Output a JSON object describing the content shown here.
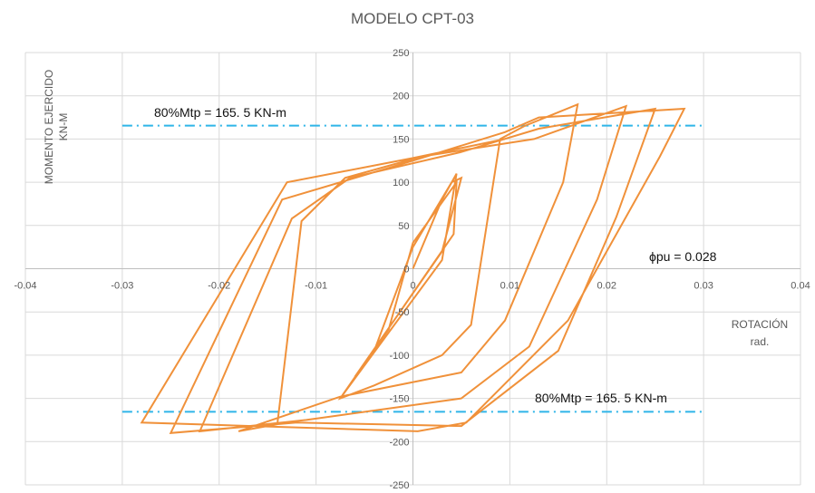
{
  "chart_data": {
    "type": "line",
    "title": "MODELO CPT-03",
    "xlabel": [
      "ROTACIÓN",
      "rad."
    ],
    "ylabel": [
      "MOMENTO EJERCIDO",
      "KN-M"
    ],
    "xlim": [
      -0.04,
      0.04
    ],
    "ylim": [
      -250,
      250
    ],
    "x_ticks": [
      -0.04,
      -0.03,
      -0.02,
      -0.01,
      0,
      0.01,
      0.02,
      0.03,
      0.04
    ],
    "x_tick_labels": [
      "-0.04",
      "-0.03",
      "-0.02",
      "-0.01",
      "0",
      "0.01",
      "0.02",
      "0.03",
      "0.04"
    ],
    "y_ticks": [
      -250,
      -200,
      -150,
      -100,
      -50,
      0,
      50,
      100,
      150,
      200,
      250
    ],
    "y_tick_labels": [
      "-250",
      "-200",
      "-150",
      "-100",
      "-50",
      "0",
      "50",
      "100",
      "150",
      "200",
      "250"
    ],
    "grid": true,
    "colors": {
      "hysteresis": "#F0913A",
      "reference": "#2FB5E8",
      "grid": "#D9D9D9",
      "text": "#595959"
    },
    "reference_lines": [
      {
        "y": 165.5,
        "x_range": [
          -0.03,
          0.03
        ],
        "label": "80%Mtp = 165. 5 KN-m",
        "style": "dash-dot"
      },
      {
        "y": -165.5,
        "x_range": [
          -0.03,
          0.03
        ],
        "label": "80%Mtp = 165. 5 KN-m",
        "style": "dash-dot"
      }
    ],
    "annotations": [
      {
        "text": "ϕpu = 0.028"
      }
    ],
    "series": [
      {
        "values": [
          [
            0,
            0
          ],
          [
            0.003,
            80
          ],
          [
            0.0045,
            110
          ],
          [
            0.003,
            10
          ],
          [
            -0.0075,
            -150
          ],
          [
            -0.004,
            -95
          ],
          [
            0,
            25
          ],
          [
            0.004,
            100
          ],
          [
            0.005,
            105
          ],
          [
            0.003,
            20
          ],
          [
            -0.006,
            -125
          ],
          [
            -0.0025,
            -70
          ],
          [
            0,
            30
          ],
          [
            0.0045,
            100
          ],
          [
            0.0042,
            40
          ],
          [
            -0.0075,
            -150
          ],
          [
            -0.004,
            -135
          ],
          [
            0.003,
            -100
          ],
          [
            0.006,
            -65
          ],
          [
            0.009,
            150
          ],
          [
            0.0115,
            165
          ],
          [
            0.017,
            190
          ],
          [
            0.0155,
            100
          ],
          [
            0.0095,
            -60
          ],
          [
            0.005,
            -120
          ],
          [
            -0.0075,
            -148
          ],
          [
            -0.018,
            -188
          ],
          [
            -0.014,
            -180
          ],
          [
            -0.0115,
            55
          ],
          [
            -0.007,
            105
          ],
          [
            0.001,
            130
          ],
          [
            0.0125,
            150
          ],
          [
            0.022,
            188
          ],
          [
            0.019,
            80
          ],
          [
            0.012,
            -90
          ],
          [
            0.005,
            -150
          ],
          [
            -0.011,
            -175
          ],
          [
            -0.022,
            -188
          ],
          [
            -0.0125,
            58
          ],
          [
            -0.0065,
            105
          ],
          [
            0.005,
            135
          ],
          [
            0.013,
            162
          ],
          [
            0.025,
            185
          ],
          [
            0.021,
            60
          ],
          [
            0.015,
            -95
          ],
          [
            0.005,
            -182
          ],
          [
            -0.012,
            -178
          ],
          [
            -0.025,
            -190
          ],
          [
            -0.0135,
            80
          ],
          [
            0,
            125
          ],
          [
            0.0095,
            158
          ],
          [
            0.013,
            175
          ],
          [
            0.028,
            185
          ],
          [
            0.0255,
            130
          ],
          [
            0.016,
            -60
          ],
          [
            0.0055,
            -178
          ],
          [
            0.0005,
            -188
          ],
          [
            -0.028,
            -178
          ],
          [
            -0.013,
            100
          ],
          [
            0,
            128
          ],
          [
            0.0095,
            150
          ]
        ]
      }
    ]
  }
}
